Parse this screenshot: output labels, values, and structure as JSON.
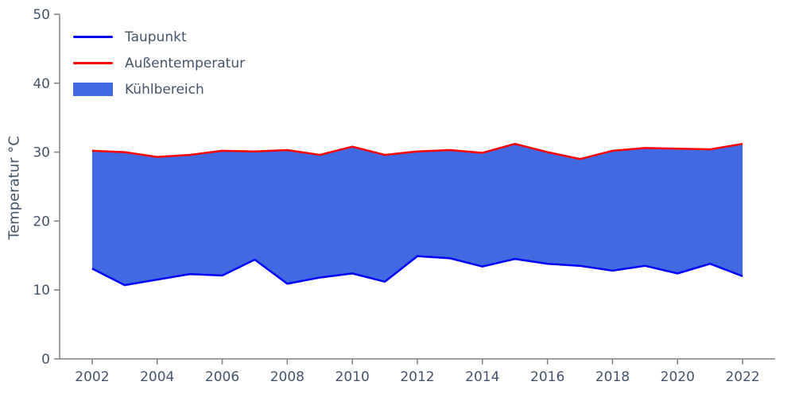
{
  "colors": {
    "text": "#44546a",
    "axis": "#808080",
    "dewpoint_line": "#0000ff",
    "temperature_line": "#ff0000",
    "fill_area": "#4169e1",
    "background": "#ffffff"
  },
  "chart_data": {
    "type": "line",
    "title": "",
    "xlabel": "",
    "ylabel": "Temperatur °C",
    "x": [
      2002,
      2003,
      2004,
      2005,
      2006,
      2007,
      2008,
      2009,
      2010,
      2011,
      2012,
      2013,
      2014,
      2015,
      2016,
      2017,
      2018,
      2019,
      2020,
      2021,
      2022
    ],
    "series": [
      {
        "name": "Taupunkt",
        "color": "#0000ff",
        "values": [
          13.1,
          10.7,
          11.5,
          12.3,
          12.1,
          14.4,
          10.9,
          11.8,
          12.4,
          11.2,
          14.9,
          14.6,
          13.4,
          14.5,
          13.8,
          13.5,
          12.8,
          13.5,
          12.4,
          13.8,
          12.0
        ]
      },
      {
        "name": "Außentemperatur",
        "color": "#ff0000",
        "values": [
          30.2,
          30.0,
          29.3,
          29.6,
          30.2,
          30.1,
          30.3,
          29.6,
          30.8,
          29.6,
          30.1,
          30.3,
          29.9,
          31.2,
          30.0,
          29.0,
          30.2,
          30.6,
          30.5,
          30.4,
          31.2
        ]
      }
    ],
    "fill_between": {
      "name": "Kühlbereich",
      "color": "#4169e1",
      "lower_series": "Taupunkt",
      "upper_series": "Außentemperatur"
    },
    "xlim": [
      2001,
      2023
    ],
    "ylim": [
      0,
      50
    ],
    "xticks": [
      2002,
      2004,
      2006,
      2008,
      2010,
      2012,
      2014,
      2016,
      2018,
      2020,
      2022
    ],
    "yticks": [
      0,
      10,
      20,
      30,
      40,
      50
    ],
    "grid": false,
    "legend_position": "upper left"
  }
}
